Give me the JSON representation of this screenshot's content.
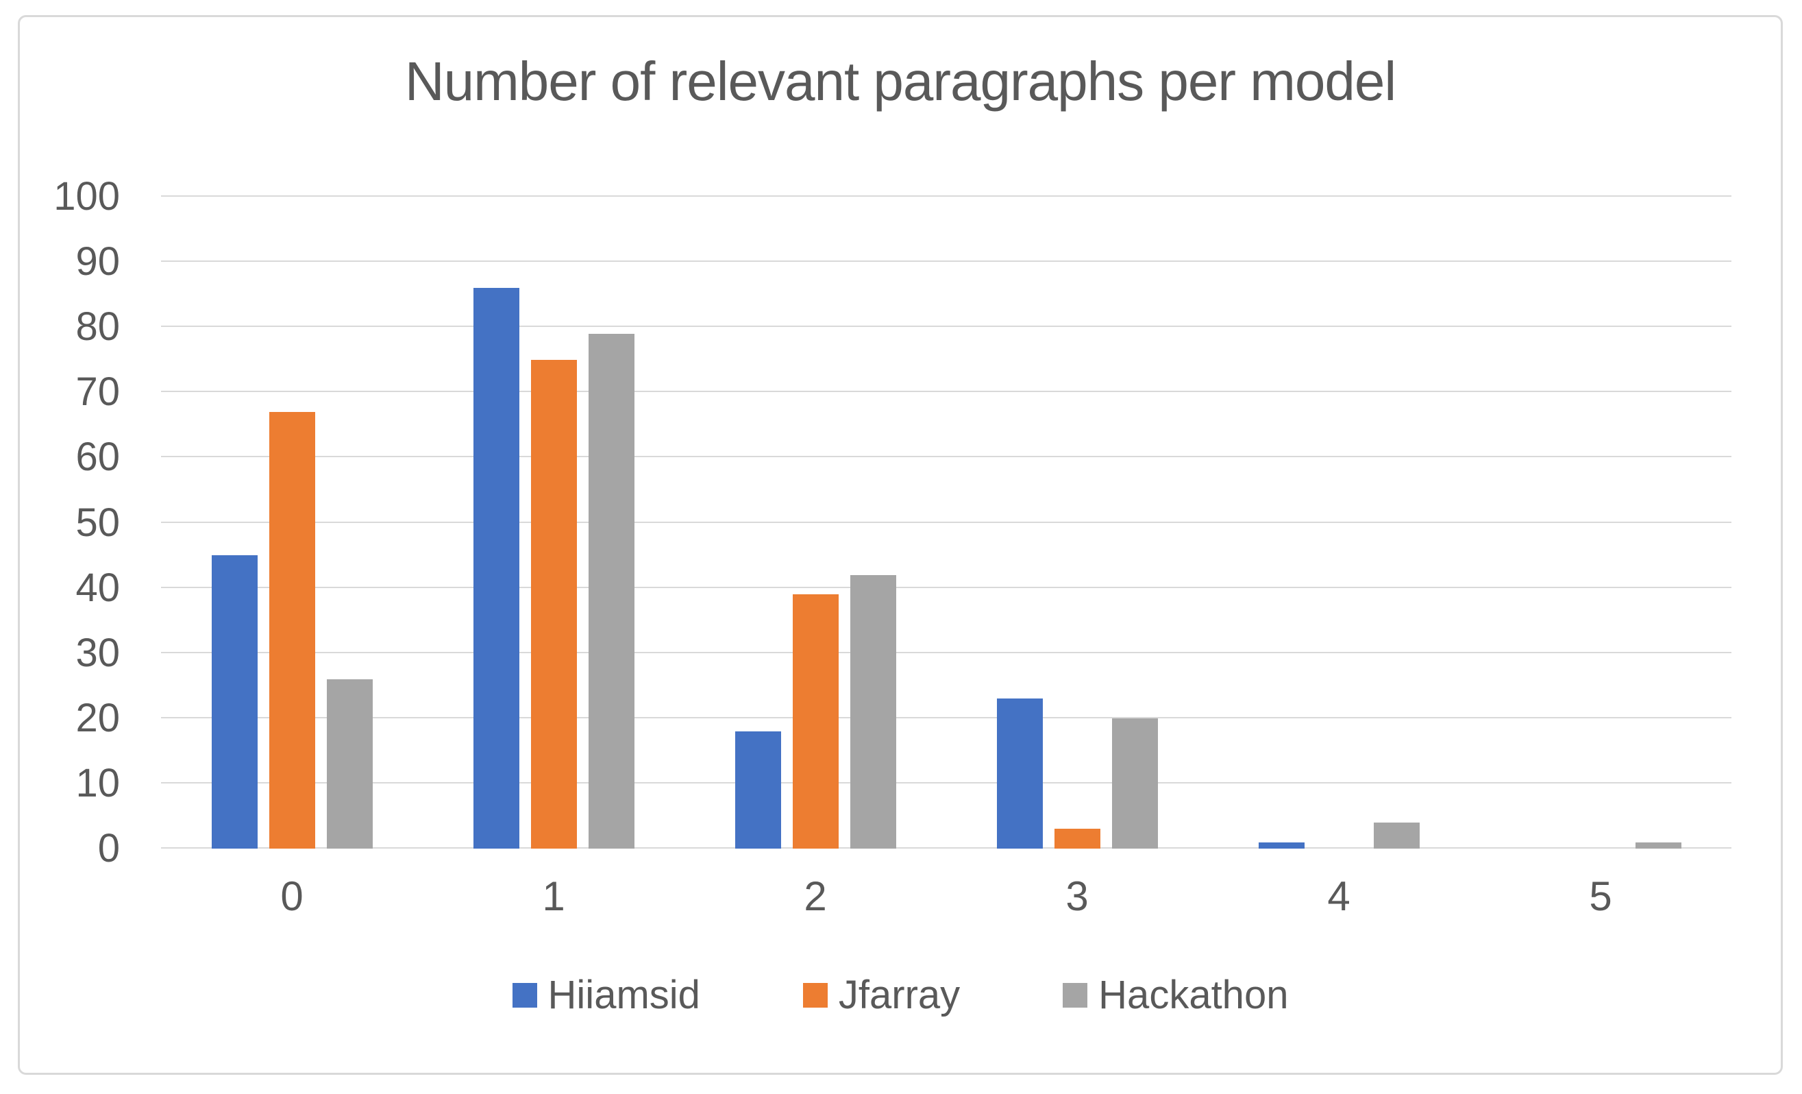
{
  "chart_data": {
    "type": "bar",
    "title": "Number of relevant paragraphs per model",
    "categories": [
      "0",
      "1",
      "2",
      "3",
      "4",
      "5"
    ],
    "series": [
      {
        "name": "Hiiamsid",
        "color": "#4472C4",
        "values": [
          45,
          86,
          18,
          23,
          1,
          0
        ]
      },
      {
        "name": "Jfarray",
        "color": "#ED7D31",
        "values": [
          67,
          75,
          39,
          3,
          0,
          0
        ]
      },
      {
        "name": "Hackathon",
        "color": "#A5A5A5",
        "values": [
          26,
          79,
          42,
          20,
          4,
          1
        ]
      }
    ],
    "xlabel": "",
    "ylabel": "",
    "ylim": [
      0,
      100
    ],
    "ytick_step": 10,
    "yticks": [
      0,
      10,
      20,
      30,
      40,
      50,
      60,
      70,
      80,
      90,
      100
    ],
    "grid": "horizontal",
    "legend_position": "bottom",
    "colors": {
      "text": "#595959",
      "gridline": "#D9D9D9",
      "frame_border": "#D9D9D9",
      "background": "#FFFFFF"
    }
  }
}
